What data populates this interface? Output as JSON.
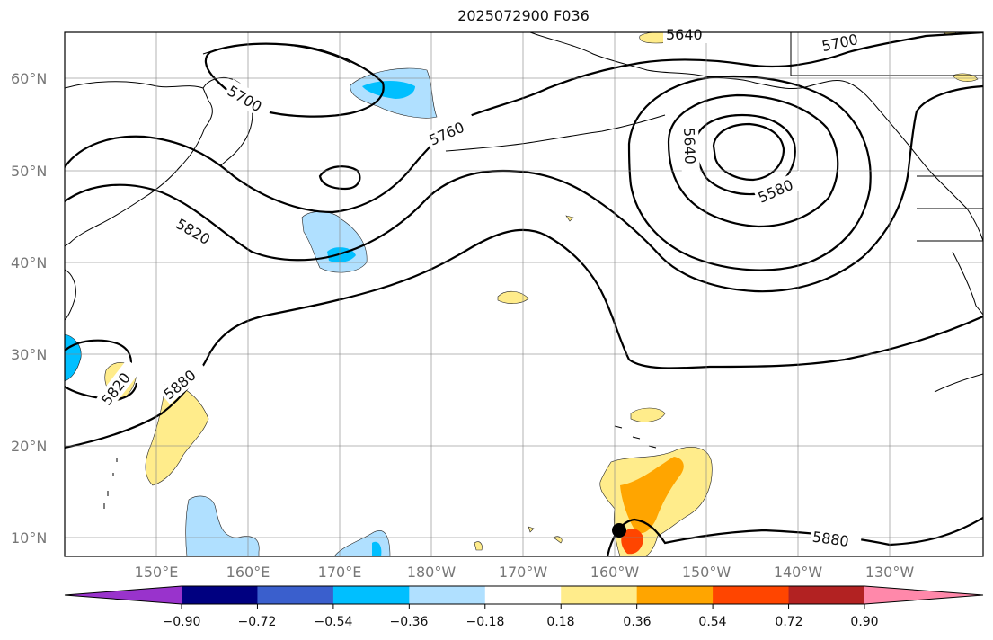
{
  "title": "2025072900 F036",
  "lat_labels": [
    "60°N",
    "50°N",
    "40°N",
    "30°N",
    "20°N",
    "10°N"
  ],
  "lon_labels": [
    "150°E",
    "160°E",
    "170°E",
    "180°W",
    "170°W",
    "160°W",
    "150°W",
    "140°W",
    "130°W"
  ],
  "contour_labels": {
    "c5700_west": "5700",
    "c5640_top": "5640",
    "c5700_east": "5700",
    "c5760": "5760",
    "c5640_low": "5640",
    "c5580": "5580",
    "c5820_north": "5820",
    "c5820_south": "5820",
    "c5880_west": "5880",
    "c5880_south": "5880"
  },
  "colorbar": {
    "tick_labels": [
      "−0.90",
      "−0.72",
      "−0.54",
      "−0.36",
      "−0.18",
      "0.18",
      "0.36",
      "0.54",
      "0.72",
      "0.90"
    ],
    "colors": [
      "#9933cc",
      "#000080",
      "#3a5fcd",
      "#00bfff",
      "#b0e0ff",
      "#ffffff",
      "#ffec8b",
      "#ffa500",
      "#ff4500",
      "#b22222",
      "#ff88aa"
    ]
  }
}
